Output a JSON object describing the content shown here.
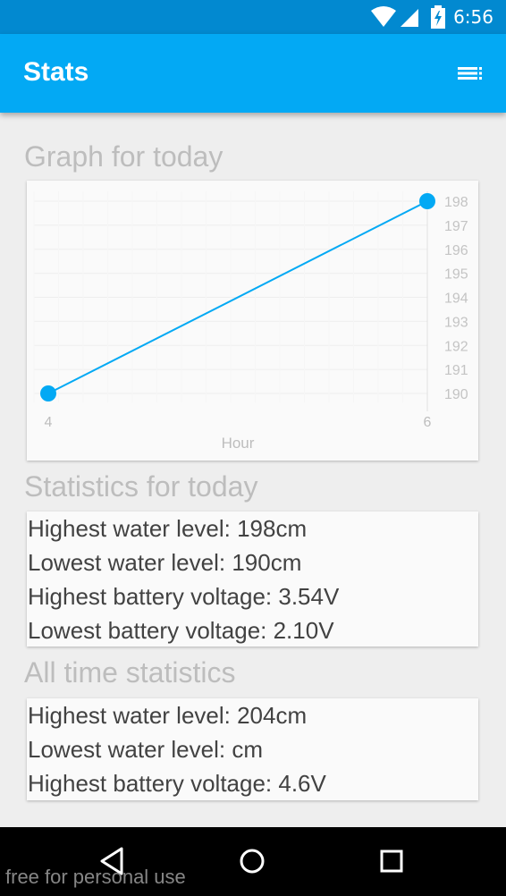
{
  "status_bar": {
    "time": "6:56",
    "icons": [
      "wifi-icon",
      "signal-icon",
      "battery-charging-icon"
    ]
  },
  "app_bar": {
    "title": "Stats",
    "menu_icon": "list-menu-icon",
    "color": "#03a9f4"
  },
  "graph_section": {
    "title": "Graph for today"
  },
  "chart_data": {
    "type": "line",
    "x": [
      4,
      6
    ],
    "series": [
      {
        "values": [
          190,
          198
        ],
        "color": "#03a9f4"
      }
    ],
    "xlabel": "Hour",
    "ylabel": "",
    "x_ticks": [
      "4",
      "6"
    ],
    "y_ticks": [
      "190",
      "191",
      "192",
      "193",
      "194",
      "195",
      "196",
      "197",
      "198"
    ],
    "xlim": [
      4,
      6
    ],
    "ylim": [
      190,
      198
    ],
    "y_axis_position": "right",
    "grid": true
  },
  "today_stats": {
    "title": "Statistics for today",
    "lines": [
      "Highest water level: 198cm",
      "Lowest water level: 190cm",
      "Highest battery voltage: 3.54V",
      "Lowest battery voltage: 2.10V"
    ]
  },
  "all_time_stats": {
    "title": "All time statistics",
    "lines": [
      "Highest water level: 204cm",
      "Lowest water level: cm",
      "Highest battery voltage: 4.6V"
    ]
  },
  "nav_bar": {
    "icons": [
      "back-icon",
      "home-icon",
      "recents-icon"
    ]
  },
  "watermark": "free for personal use"
}
